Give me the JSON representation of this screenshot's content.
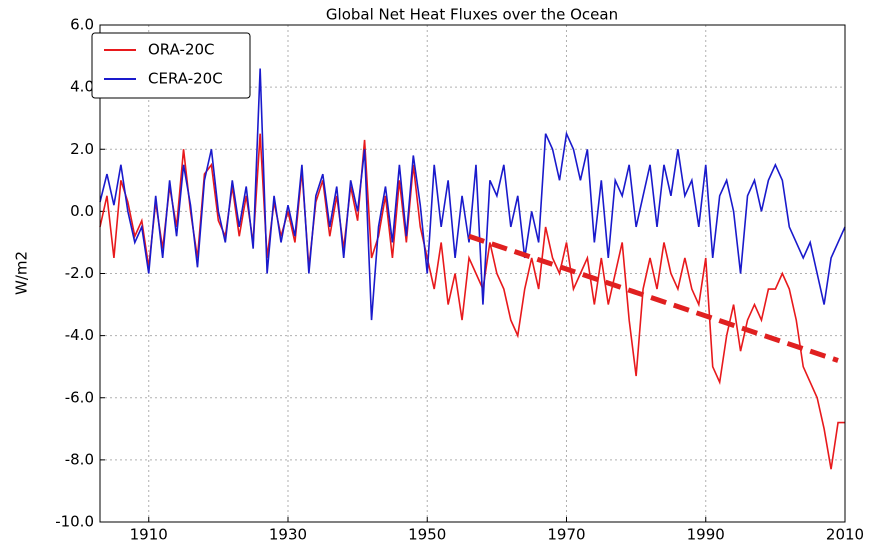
{
  "chart_data": {
    "type": "line",
    "title": "Global Net Heat Fluxes over the Ocean",
    "ylabel": "W/m2",
    "xlim": [
      1903,
      2010
    ],
    "ylim": [
      -10,
      6
    ],
    "xticks": [
      1910,
      1930,
      1950,
      1970,
      1990,
      2010
    ],
    "yticks": [
      {
        "value": -10,
        "label": "-10.0"
      },
      {
        "value": -8,
        "label": "-8.0"
      },
      {
        "value": -6,
        "label": "-6.0"
      },
      {
        "value": -4,
        "label": "-4.0"
      },
      {
        "value": -2,
        "label": "-2.0"
      },
      {
        "value": 0,
        "label": "0.0"
      },
      {
        "value": 2,
        "label": "2.0"
      },
      {
        "value": 4,
        "label": "4.0"
      },
      {
        "value": 6,
        "label": "6.0"
      }
    ],
    "grid": true,
    "legend": "upper left",
    "x": [
      1903,
      1904,
      1905,
      1906,
      1907,
      1908,
      1909,
      1910,
      1911,
      1912,
      1913,
      1914,
      1915,
      1916,
      1917,
      1918,
      1919,
      1920,
      1921,
      1922,
      1923,
      1924,
      1925,
      1926,
      1927,
      1928,
      1929,
      1930,
      1931,
      1932,
      1933,
      1934,
      1935,
      1936,
      1937,
      1938,
      1939,
      1940,
      1941,
      1942,
      1943,
      1944,
      1945,
      1946,
      1947,
      1948,
      1949,
      1950,
      1951,
      1952,
      1953,
      1954,
      1955,
      1956,
      1957,
      1958,
      1959,
      1960,
      1961,
      1962,
      1963,
      1964,
      1965,
      1966,
      1967,
      1968,
      1969,
      1970,
      1971,
      1972,
      1973,
      1974,
      1975,
      1976,
      1977,
      1978,
      1979,
      1980,
      1981,
      1982,
      1983,
      1984,
      1985,
      1986,
      1987,
      1988,
      1989,
      1990,
      1991,
      1992,
      1993,
      1994,
      1995,
      1996,
      1997,
      1998,
      1999,
      2000,
      2001,
      2002,
      2003,
      2004,
      2005,
      2006,
      2007,
      2008,
      2009,
      2010
    ],
    "series": [
      {
        "name": "ORA-20C",
        "color": "#e8191c",
        "values": [
          -0.5,
          0.5,
          -1.5,
          1.0,
          0.3,
          -0.8,
          -0.3,
          -1.8,
          0.3,
          -1.2,
          0.8,
          -0.5,
          2.0,
          0.0,
          -1.5,
          1.2,
          1.5,
          -0.3,
          -0.8,
          0.8,
          -0.8,
          0.5,
          -1.0,
          2.5,
          -1.5,
          0.3,
          -0.8,
          0.0,
          -1.0,
          1.3,
          -1.8,
          0.3,
          1.0,
          -0.8,
          0.5,
          -1.2,
          0.8,
          -0.3,
          2.3,
          -1.5,
          -0.8,
          0.5,
          -1.5,
          1.0,
          -1.0,
          1.5,
          -0.5,
          -1.5,
          -2.5,
          -1.0,
          -3.0,
          -2.0,
          -3.5,
          -1.5,
          -2.0,
          -2.5,
          -1.0,
          -2.0,
          -2.5,
          -3.5,
          -4.0,
          -2.5,
          -1.5,
          -2.5,
          -0.5,
          -1.5,
          -2.0,
          -1.0,
          -2.5,
          -2.0,
          -1.5,
          -3.0,
          -1.5,
          -3.0,
          -2.0,
          -1.0,
          -3.5,
          -5.3,
          -2.5,
          -1.5,
          -2.5,
          -1.0,
          -2.0,
          -2.5,
          -1.5,
          -2.5,
          -3.0,
          -1.5,
          -5.0,
          -5.5,
          -4.0,
          -3.0,
          -4.5,
          -3.5,
          -3.0,
          -3.5,
          -2.5,
          -2.5,
          -2.0,
          -2.5,
          -3.5,
          -5.0,
          -5.5,
          -6.0,
          -7.0,
          -8.3,
          -6.8,
          -6.8
        ]
      },
      {
        "name": "CERA-20C",
        "color": "#1a1acc",
        "values": [
          0.3,
          1.2,
          0.2,
          1.5,
          0.0,
          -1.0,
          -0.5,
          -2.0,
          0.5,
          -1.5,
          1.0,
          -0.8,
          1.5,
          0.2,
          -1.8,
          1.0,
          2.0,
          0.0,
          -1.0,
          1.0,
          -0.5,
          0.8,
          -1.2,
          4.6,
          -2.0,
          0.5,
          -1.0,
          0.2,
          -0.8,
          1.5,
          -2.0,
          0.5,
          1.2,
          -0.5,
          0.8,
          -1.5,
          1.0,
          0.0,
          2.0,
          -3.5,
          -0.5,
          0.8,
          -1.0,
          1.5,
          -0.8,
          1.8,
          0.2,
          -2.0,
          1.5,
          -0.5,
          1.0,
          -1.5,
          0.5,
          -1.0,
          1.5,
          -3.0,
          1.0,
          0.5,
          1.5,
          -0.5,
          0.5,
          -1.5,
          0.0,
          -1.0,
          2.5,
          2.0,
          1.0,
          2.5,
          2.0,
          1.0,
          2.0,
          -1.0,
          1.0,
          -1.5,
          1.0,
          0.5,
          1.5,
          -0.5,
          0.5,
          1.5,
          -0.5,
          1.5,
          0.5,
          2.0,
          0.5,
          1.0,
          -0.5,
          1.5,
          -1.5,
          0.5,
          1.0,
          0.0,
          -2.0,
          0.5,
          1.0,
          0.0,
          1.0,
          1.5,
          1.0,
          -0.5,
          -1.0,
          -1.5,
          -1.0,
          -2.0,
          -3.0,
          -1.5,
          -1.0,
          -0.5
        ]
      }
    ],
    "trend_line": {
      "x": [
        1956,
        2009
      ],
      "y": [
        -0.8,
        -4.8
      ],
      "color": "#e02020"
    }
  }
}
